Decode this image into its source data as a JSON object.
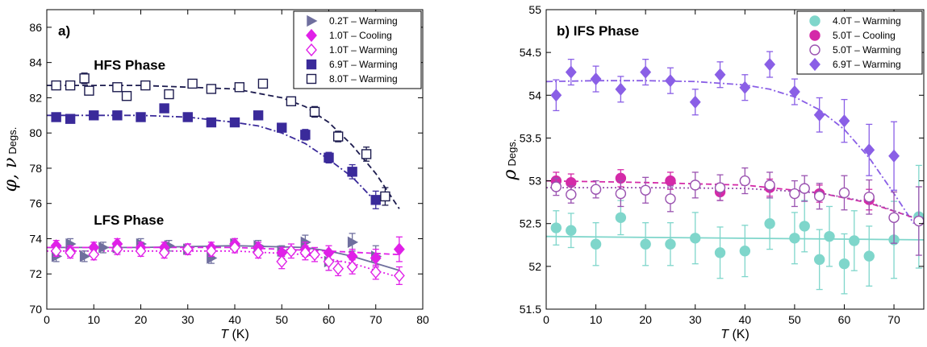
{
  "colors": {
    "grey_blue": "#6f6f9e",
    "magenta": "#e020e8",
    "indigo": "#3a2a9a",
    "navy": "#1c1b4e",
    "teal": "#7fd6cb",
    "crimson": "#d42aa8",
    "plum": "#9a52b0",
    "violet": "#8a5fe6"
  },
  "chart_data": [
    {
      "type": "scatter",
      "panel_label": "a)",
      "ylabel_symbols": "φ, ν",
      "ylabel_unit": "Degs.",
      "xlabel_var": "T",
      "xlabel_unit": " (K)",
      "xlim": [
        0,
        80
      ],
      "ylim": [
        70,
        87
      ],
      "xticks": [
        0,
        10,
        20,
        30,
        40,
        50,
        60,
        70,
        80
      ],
      "xtick_labels": [
        "0",
        "10",
        "20",
        "30",
        "40",
        "50",
        "60",
        "70",
        "80"
      ],
      "yticks": [
        70,
        72,
        74,
        76,
        78,
        80,
        82,
        84,
        86
      ],
      "ytick_labels": [
        "70",
        "72",
        "74",
        "76",
        "78",
        "80",
        "82",
        "84",
        "86"
      ],
      "grid": false,
      "legend_position": "top-right",
      "annotations": [
        {
          "text": "HFS Phase",
          "x": 10,
          "y": 83.6
        },
        {
          "text": "LFS Phase",
          "x": 10,
          "y": 74.8
        }
      ],
      "series": [
        {
          "name": "0.2T – Warming",
          "marker": "triangle-right",
          "filled": true,
          "color_key": "grey_blue",
          "x": [
            2,
            5,
            8,
            12,
            15,
            20,
            26,
            30,
            35,
            40,
            45,
            50,
            55,
            60,
            65,
            70
          ],
          "y": [
            73.0,
            73.7,
            73.0,
            73.5,
            73.5,
            73.7,
            73.6,
            73.4,
            72.9,
            73.7,
            73.6,
            73.3,
            73.8,
            72.7,
            73.8,
            73.0
          ],
          "err": [
            0.3,
            0.3,
            0.3,
            0.3,
            0.3,
            0.3,
            0.3,
            0.3,
            0.3,
            0.3,
            0.3,
            0.3,
            0.4,
            0.5,
            0.5,
            0.6
          ]
        },
        {
          "name": "1.0T – Cooling",
          "marker": "diamond",
          "filled": true,
          "color_key": "magenta",
          "x": [
            2,
            5,
            10,
            15,
            20,
            25,
            30,
            35,
            40,
            45,
            50,
            55,
            60,
            65,
            70,
            75
          ],
          "y": [
            73.6,
            73.3,
            73.5,
            73.7,
            73.5,
            73.5,
            73.4,
            73.5,
            73.7,
            73.5,
            73.2,
            73.4,
            73.2,
            73.0,
            72.9,
            73.4
          ],
          "err": [
            0.3,
            0.3,
            0.3,
            0.3,
            0.3,
            0.3,
            0.3,
            0.3,
            0.3,
            0.3,
            0.3,
            0.4,
            0.4,
            0.4,
            0.5,
            0.7
          ]
        },
        {
          "name": "1.0T – Warming",
          "marker": "diamond",
          "filled": false,
          "color_key": "magenta",
          "x": [
            2,
            5,
            10,
            15,
            20,
            25,
            30,
            35,
            40,
            45,
            50,
            52,
            55,
            57,
            60,
            62,
            65,
            70,
            75
          ],
          "y": [
            73.3,
            73.2,
            73.1,
            73.4,
            73.3,
            73.2,
            73.4,
            73.3,
            73.5,
            73.2,
            72.7,
            73.3,
            73.2,
            73.1,
            72.7,
            72.3,
            72.4,
            72.1,
            71.9
          ],
          "err": [
            0.3,
            0.3,
            0.3,
            0.3,
            0.3,
            0.3,
            0.3,
            0.3,
            0.3,
            0.3,
            0.4,
            0.4,
            0.4,
            0.4,
            0.5,
            0.4,
            0.4,
            0.4,
            0.5
          ]
        },
        {
          "name": "6.9T – Warming",
          "marker": "square",
          "filled": true,
          "color_key": "indigo",
          "x": [
            2,
            5,
            10,
            15,
            20,
            25,
            30,
            35,
            40,
            45,
            50,
            55,
            60,
            65,
            70
          ],
          "y": [
            80.9,
            80.8,
            81.0,
            81.0,
            80.9,
            81.4,
            80.9,
            80.6,
            80.6,
            81.0,
            80.3,
            79.9,
            78.6,
            77.8,
            76.2
          ],
          "err": [
            0.2,
            0.2,
            0.2,
            0.2,
            0.2,
            0.2,
            0.2,
            0.2,
            0.2,
            0.2,
            0.2,
            0.3,
            0.3,
            0.4,
            0.5
          ]
        },
        {
          "name": "8.0T – Warming",
          "marker": "square",
          "filled": false,
          "color_key": "navy",
          "x": [
            2,
            5,
            8,
            9,
            15,
            17,
            21,
            26,
            31,
            35,
            41,
            46,
            52,
            57,
            62,
            68,
            72
          ],
          "y": [
            82.7,
            82.7,
            83.1,
            82.4,
            82.6,
            82.1,
            82.7,
            82.2,
            82.8,
            82.5,
            82.6,
            82.8,
            81.8,
            81.2,
            79.8,
            78.8,
            76.4
          ],
          "err": [
            0.2,
            0.2,
            0.3,
            0.2,
            0.2,
            0.2,
            0.2,
            0.2,
            0.2,
            0.2,
            0.2,
            0.2,
            0.2,
            0.3,
            0.3,
            0.4,
            0.5
          ]
        }
      ],
      "fits": [
        {
          "color_key": "navy",
          "dash": "dashed",
          "x": [
            0,
            10,
            20,
            30,
            40,
            50,
            55,
            60,
            65,
            70,
            75
          ],
          "y": [
            82.7,
            82.7,
            82.7,
            82.6,
            82.5,
            82.0,
            81.5,
            80.6,
            79.3,
            77.7,
            75.7
          ]
        },
        {
          "color_key": "indigo",
          "dash": "dashdot",
          "x": [
            0,
            10,
            20,
            30,
            40,
            45,
            50,
            55,
            60,
            65,
            70
          ],
          "y": [
            81.0,
            81.0,
            81.0,
            80.9,
            80.6,
            80.4,
            80.0,
            79.4,
            78.5,
            77.5,
            76.1
          ]
        },
        {
          "color_key": "grey_blue",
          "dash": "solid",
          "x": [
            0,
            20,
            40,
            55,
            60,
            65,
            70,
            75
          ],
          "y": [
            73.5,
            73.5,
            73.6,
            73.5,
            73.3,
            73.0,
            72.6,
            72.2
          ]
        },
        {
          "color_key": "magenta",
          "dash": "dashed",
          "x": [
            0,
            20,
            40,
            60,
            75
          ],
          "y": [
            73.5,
            73.5,
            73.5,
            73.3,
            73.1
          ]
        },
        {
          "color_key": "magenta",
          "dash": "dotted",
          "x": [
            0,
            20,
            40,
            55,
            65,
            75
          ],
          "y": [
            73.3,
            73.3,
            73.3,
            73.1,
            72.6,
            71.8
          ]
        }
      ]
    },
    {
      "type": "scatter",
      "panel_label": "b) IFS Phase",
      "ylabel_symbols": "ρ",
      "ylabel_unit": "Degs.",
      "xlabel_var": "T",
      "xlabel_unit": " (K)",
      "xlim": [
        0,
        76
      ],
      "ylim": [
        51.5,
        55
      ],
      "xticks": [
        0,
        10,
        20,
        30,
        40,
        50,
        60,
        70
      ],
      "xtick_labels": [
        "0",
        "10",
        "20",
        "30",
        "40",
        "50",
        "60",
        "70"
      ],
      "yticks": [
        51.5,
        52,
        52.5,
        53,
        53.5,
        54,
        54.5,
        55
      ],
      "ytick_labels": [
        "51.5",
        "52",
        "52.5",
        "53",
        "53.5",
        "54",
        "54.5",
        "55"
      ],
      "grid": false,
      "legend_position": "top-right",
      "annotations": [],
      "series": [
        {
          "name": "4.0T – Warming",
          "marker": "circle",
          "filled": true,
          "color_key": "teal",
          "x": [
            2,
            5,
            10,
            15,
            20,
            25,
            30,
            35,
            40,
            45,
            50,
            52,
            55,
            57,
            60,
            62,
            65,
            70,
            75
          ],
          "y": [
            52.45,
            52.42,
            52.26,
            52.57,
            52.26,
            52.26,
            52.33,
            52.16,
            52.18,
            52.5,
            52.33,
            52.47,
            52.08,
            52.35,
            52.03,
            52.3,
            52.12,
            52.31,
            52.58
          ],
          "err": [
            0.2,
            0.2,
            0.25,
            0.2,
            0.25,
            0.25,
            0.3,
            0.3,
            0.3,
            0.3,
            0.3,
            0.3,
            0.35,
            0.35,
            0.35,
            0.35,
            0.35,
            0.45,
            0.6
          ]
        },
        {
          "name": "5.0T – Cooling",
          "marker": "circle",
          "filled": true,
          "color_key": "crimson",
          "x": [
            2,
            5,
            15,
            25,
            35,
            45,
            55,
            65
          ],
          "y": [
            53.0,
            52.98,
            53.03,
            53.0,
            52.87,
            52.92,
            52.85,
            52.78
          ],
          "err": [
            0.1,
            0.1,
            0.1,
            0.1,
            0.1,
            0.1,
            0.1,
            0.12
          ]
        },
        {
          "name": "5.0T – Warming",
          "marker": "circle",
          "filled": false,
          "color_key": "plum",
          "x": [
            2,
            5,
            10,
            15,
            20,
            25,
            30,
            35,
            40,
            45,
            50,
            52,
            55,
            60,
            65,
            70,
            75
          ],
          "y": [
            52.93,
            52.84,
            52.9,
            52.85,
            52.89,
            52.79,
            52.95,
            52.92,
            53.0,
            52.95,
            52.85,
            52.91,
            52.82,
            52.86,
            52.81,
            52.57,
            52.53
          ],
          "err": [
            0.1,
            0.1,
            0.1,
            0.15,
            0.15,
            0.15,
            0.15,
            0.15,
            0.15,
            0.15,
            0.15,
            0.15,
            0.15,
            0.2,
            0.2,
            0.3,
            0.4
          ]
        },
        {
          "name": "6.9T – Warming",
          "marker": "diamond",
          "filled": true,
          "color_key": "violet",
          "x": [
            2,
            5,
            10,
            15,
            20,
            25,
            30,
            35,
            40,
            45,
            50,
            55,
            60,
            65,
            70
          ],
          "y": [
            54.0,
            54.27,
            54.19,
            54.07,
            54.27,
            54.17,
            53.92,
            54.24,
            54.09,
            54.36,
            54.04,
            53.77,
            53.7,
            53.36,
            53.29
          ],
          "err": [
            0.18,
            0.15,
            0.15,
            0.15,
            0.15,
            0.15,
            0.15,
            0.15,
            0.15,
            0.15,
            0.15,
            0.2,
            0.25,
            0.3,
            0.4
          ]
        }
      ],
      "fits": [
        {
          "color_key": "violet",
          "dash": "dashdot",
          "x": [
            0,
            10,
            20,
            30,
            40,
            45,
            50,
            55,
            60,
            65,
            70,
            74
          ],
          "y": [
            54.16,
            54.17,
            54.17,
            54.16,
            54.12,
            54.07,
            53.98,
            53.83,
            53.6,
            53.27,
            52.85,
            52.5
          ]
        },
        {
          "color_key": "crimson",
          "dash": "dashed",
          "x": [
            0,
            20,
            40,
            55,
            65,
            75
          ],
          "y": [
            53.0,
            52.98,
            52.95,
            52.86,
            52.74,
            52.55
          ]
        },
        {
          "color_key": "plum",
          "dash": "dotted",
          "x": [
            0,
            20,
            40,
            55,
            65,
            75
          ],
          "y": [
            52.92,
            52.92,
            52.91,
            52.86,
            52.75,
            52.55
          ]
        },
        {
          "color_key": "teal",
          "dash": "solid",
          "x": [
            0,
            76
          ],
          "y": [
            52.35,
            52.31
          ]
        }
      ]
    }
  ]
}
